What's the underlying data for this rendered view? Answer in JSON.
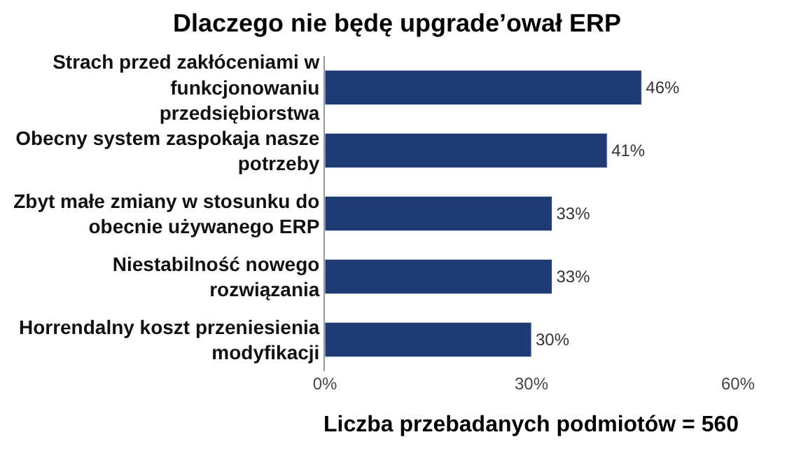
{
  "chart_data": {
    "type": "bar",
    "orientation": "horizontal",
    "title": "Dlaczego nie będę upgrade’ował ERP",
    "categories": [
      "Strach przed zakłóceniami w funkcjonowaniu  przedsiębiorstwa",
      "Obecny system zaspokaja nasze potrzeby",
      "Zbyt małe zmiany w stosunku do obecnie używanego ERP",
      "Niestabilność nowego rozwiązania",
      "Horrendalny koszt przeniesienia modyfikacji"
    ],
    "values": [
      46,
      41,
      33,
      33,
      30
    ],
    "value_labels": [
      "46%",
      "41%",
      "33%",
      "33%",
      "30%"
    ],
    "color": "#1f3b73",
    "xlim": [
      0,
      60
    ],
    "xticks": [
      {
        "value": 0,
        "label": "0%"
      },
      {
        "value": 30,
        "label": "30%"
      },
      {
        "value": 60,
        "label": "60%"
      }
    ],
    "annotations": [
      "Liczba przebadanych podmiotów = 560"
    ],
    "legend": false
  }
}
